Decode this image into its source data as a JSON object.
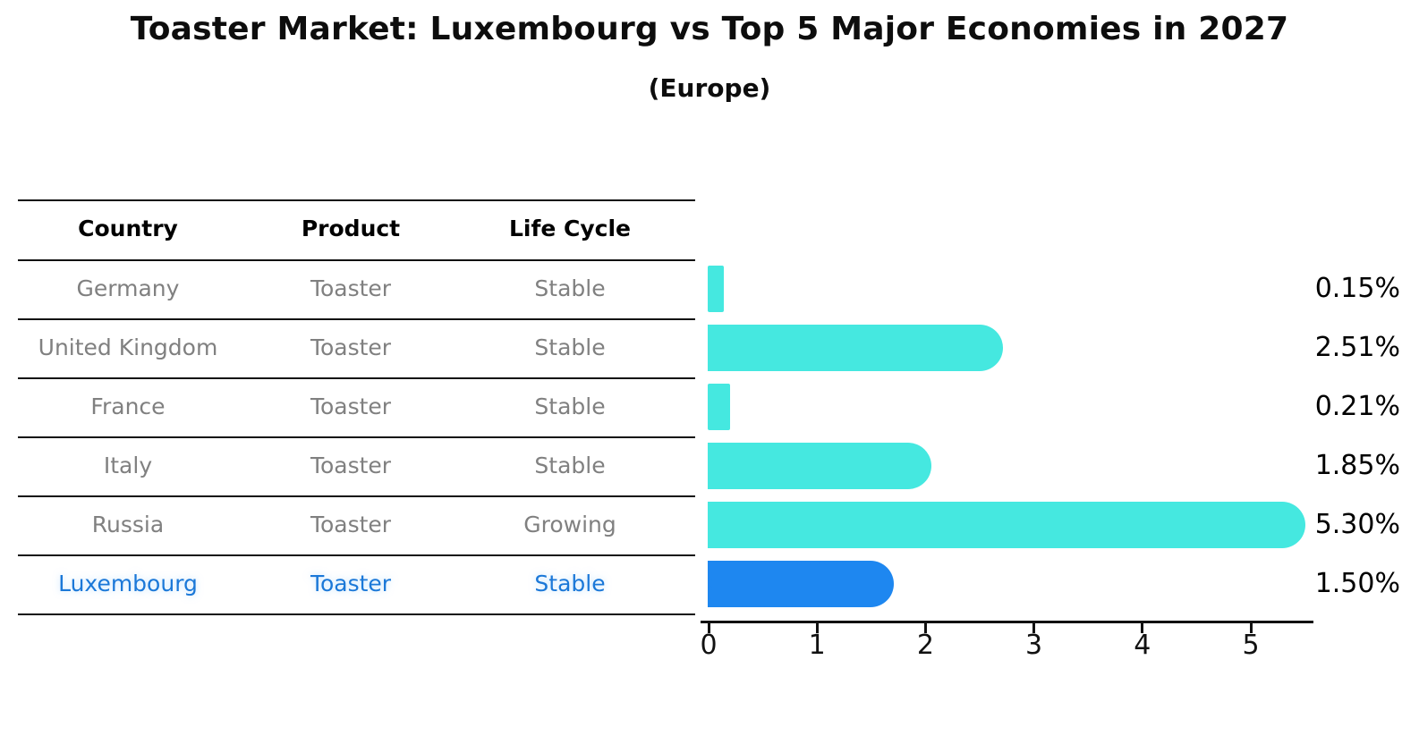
{
  "page": {
    "background": "#ffffff"
  },
  "chart_data": {
    "type": "bar",
    "orientation": "horizontal",
    "title": "Toaster Market: Luxembourg vs Top 5 Major Economies in 2027",
    "subtitle": "(Europe)",
    "table_headers": [
      "Country",
      "Product",
      "Life Cycle"
    ],
    "categories": [
      "Germany",
      "United Kingdom",
      "France",
      "Italy",
      "Russia",
      "Luxembourg"
    ],
    "rows": [
      {
        "country": "Germany",
        "product": "Toaster",
        "life_cycle": "Stable",
        "value": 0.15,
        "value_label": "0.15%",
        "highlighted": false
      },
      {
        "country": "United Kingdom",
        "product": "Toaster",
        "life_cycle": "Stable",
        "value": 2.51,
        "value_label": "2.51%",
        "highlighted": false
      },
      {
        "country": "France",
        "product": "Toaster",
        "life_cycle": "Stable",
        "value": 0.21,
        "value_label": "0.21%",
        "highlighted": false
      },
      {
        "country": "Italy",
        "product": "Toaster",
        "life_cycle": "Stable",
        "value": 1.85,
        "value_label": "1.85%",
        "highlighted": false
      },
      {
        "country": "Russia",
        "product": "Toaster",
        "life_cycle": "Growing",
        "value": 5.3,
        "value_label": "5.30%",
        "highlighted": false
      },
      {
        "country": "Luxembourg",
        "product": "Toaster",
        "life_cycle": "Stable",
        "value": 1.5,
        "value_label": "1.50%",
        "highlighted": true
      }
    ],
    "x_ticks": [
      "0",
      "1",
      "2",
      "3",
      "4",
      "5"
    ],
    "xlim": [
      0,
      5.6
    ],
    "grid": false,
    "legend": false,
    "colors": {
      "bar": "#45E8E0",
      "highlight_bar": "#1E87F0",
      "highlight_bar_border": "#1E87F0",
      "highlight_text": "#1b78d8",
      "table_text": "#808080",
      "header_text": "#000000",
      "axis": "#111111",
      "value_text": "#000000"
    }
  }
}
